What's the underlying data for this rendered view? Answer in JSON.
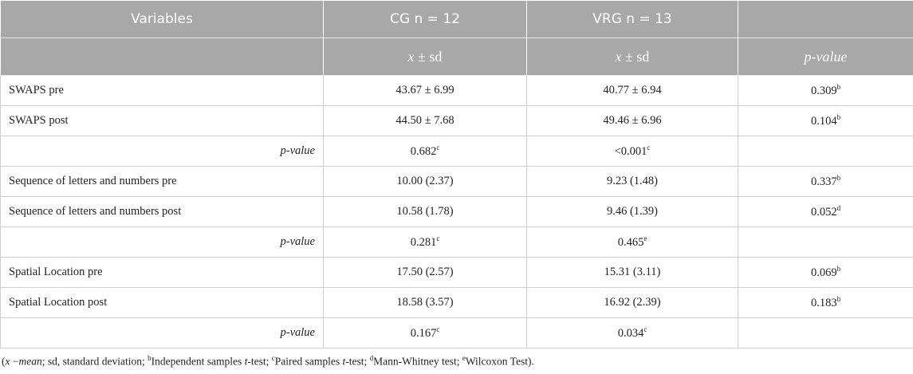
{
  "table": {
    "header": {
      "variables": "Variables",
      "cg": "CG n = 12",
      "vrg": "VRG n = 13",
      "cg_stat": [
        "x",
        " ± sd"
      ],
      "vrg_stat": [
        "x",
        " ± sd"
      ],
      "p": "p-value"
    },
    "groups": [
      {
        "rows": [
          {
            "label": "SWAPS pre",
            "cg": {
              "text": "43.67 ± 6.99"
            },
            "vrg": {
              "text": "40.77 ± 6.94"
            },
            "p": {
              "text": "0.309",
              "sup": "b"
            }
          },
          {
            "label": "SWAPS post",
            "cg": {
              "text": "44.50 ± 7.68"
            },
            "vrg": {
              "text": "49.46 ± 6.96"
            },
            "p": {
              "text": "0.104",
              "sup": "b"
            }
          }
        ],
        "test": {
          "label": "p-value",
          "cg": {
            "text": "0.682",
            "sup": "c"
          },
          "vrg": {
            "text": "<0.001",
            "sup": "c"
          }
        }
      },
      {
        "rows": [
          {
            "label": "Sequence of letters and numbers pre",
            "cg": {
              "text": "10.00 (2.37)"
            },
            "vrg": {
              "text": "9.23 (1.48)"
            },
            "p": {
              "text": "0.337",
              "sup": "b"
            }
          },
          {
            "label": "Sequence of letters and numbers post",
            "cg": {
              "text": "10.58 (1.78)"
            },
            "vrg": {
              "text": "9.46 (1.39)"
            },
            "p": {
              "text": "0.052",
              "sup": "d"
            }
          }
        ],
        "test": {
          "label": "p-value",
          "cg": {
            "text": "0.281",
            "sup": "c"
          },
          "vrg": {
            "text": "0.465",
            "sup": "e"
          }
        }
      },
      {
        "rows": [
          {
            "label": "Spatial Location pre",
            "cg": {
              "text": "17.50 (2.57)"
            },
            "vrg": {
              "text": "15.31 (3.11)"
            },
            "p": {
              "text": "0.069",
              "sup": "b"
            }
          },
          {
            "label": "Spatial Location post",
            "cg": {
              "text": "18.58 (3.57)"
            },
            "vrg": {
              "text": "16.92 (2.39)"
            },
            "p": {
              "text": "0.183",
              "sup": "b"
            }
          }
        ],
        "test": {
          "label": "p-value",
          "cg": {
            "text": "0.167",
            "sup": "c"
          },
          "vrg": {
            "text": "0.034",
            "sup": "c"
          }
        }
      }
    ],
    "footnote": [
      "(",
      "x",
      " −",
      "mean",
      "; sd, standard deviation; ",
      "b",
      "Independent samples ",
      "t",
      "-test; ",
      "c",
      "Paired samples ",
      "t",
      "-test; ",
      "d",
      "Mann-Whitney test; ",
      "e",
      "Wilcoxon Test)."
    ]
  }
}
